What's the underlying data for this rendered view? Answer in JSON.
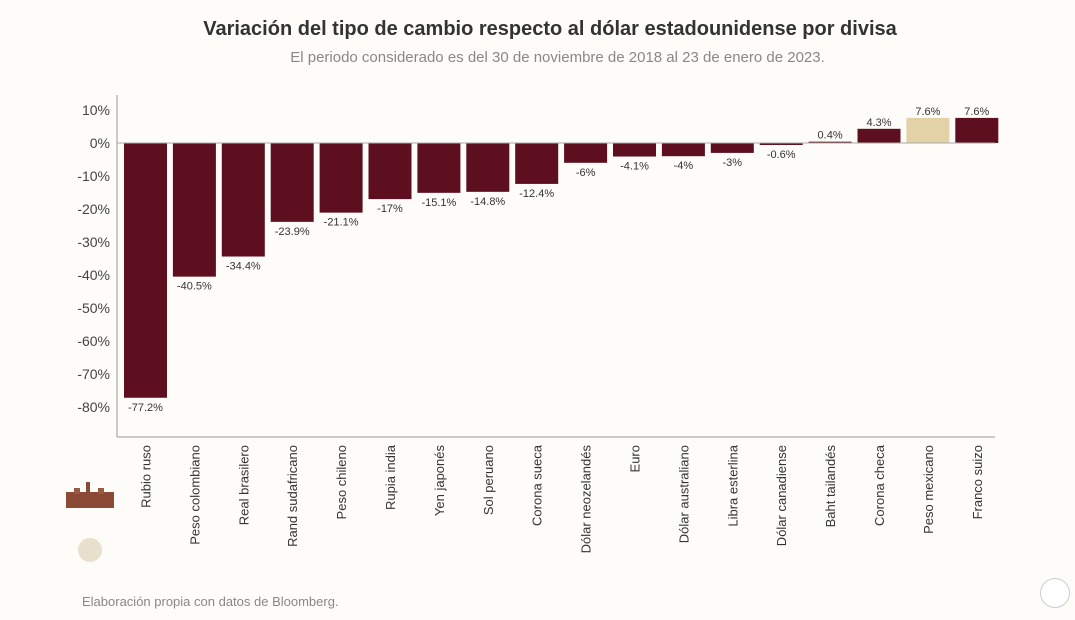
{
  "chart_data": {
    "type": "bar",
    "title": "Variación del tipo de cambio respecto al dólar estadounidense por divisa",
    "subtitle": "El periodo considerado es del 30 de noviembre de 2018 al 23 de enero de 2023.",
    "categories": [
      "Rubio ruso",
      "Peso colombiano",
      "Real brasilero",
      "Rand sudafricano",
      "Peso chileno",
      "Rupia india",
      "Yen japonés",
      "Sol peruano",
      "Corona sueca",
      "Dólar neozelandés",
      "Euro",
      "Dólar australiano",
      "Libra esterlina",
      "Dólar canadiense",
      "Baht tailandés",
      "Corona checa",
      "Peso mexicano",
      "Franco suizo"
    ],
    "values": [
      -77.2,
      -40.5,
      -34.4,
      -23.9,
      -21.1,
      -17,
      -15.1,
      -14.8,
      -12.4,
      -6,
      -4.1,
      -4,
      -3,
      -0.6,
      0.4,
      4.3,
      7.6,
      7.6
    ],
    "data_labels": [
      "-77.2%",
      "-40.5%",
      "-34.4%",
      "-23.9%",
      "-21.1%",
      "-17%",
      "-15.1%",
      "-14.8%",
      "-12.4%",
      "-6%",
      "-4.1%",
      "-4%",
      "-3%",
      "-0.6%",
      "0.4%",
      "4.3%",
      "7.6%",
      "7.6%"
    ],
    "yticks": [
      "10%",
      "0%",
      "-10%",
      "-20%",
      "-30%",
      "-40%",
      "-50%",
      "-60%",
      "-70%",
      "-80%"
    ],
    "ylim": [
      -90,
      10
    ],
    "xlabel": "",
    "ylabel": "",
    "grid": false,
    "colors": {
      "default": "#5e0f1f",
      "highlight": "#e3d2a8",
      "highlight_category": "Peso mexicano"
    }
  },
  "source": "Elaboración propia con datos de Bloomberg."
}
